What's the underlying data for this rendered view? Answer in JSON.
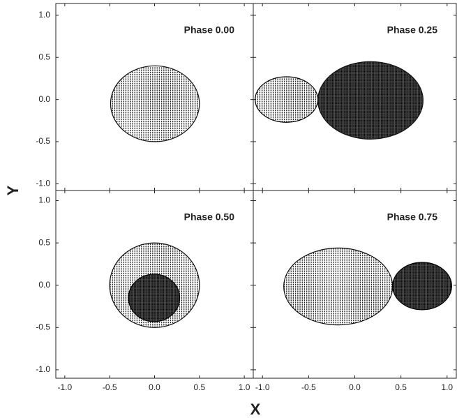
{
  "axes": {
    "x_label": "X",
    "y_label": "Y"
  },
  "chart_data": [
    {
      "type": "surface",
      "title": "Phase 0.00",
      "series": [
        {
          "color": "#111111",
          "x": [
            -0.49,
            0.5
          ],
          "values": [
            -0.5,
            0.4
          ]
        }
      ],
      "xlim": [
        -1.1,
        1.1
      ],
      "ylim": [
        -1.08,
        1.14
      ],
      "xticks": [
        {
          "value": -1,
          "label": "-1.0"
        },
        {
          "value": -0.5,
          "label": "-0.5"
        },
        {
          "value": 0,
          "label": "0.0"
        },
        {
          "value": 0.5,
          "label": "0.5"
        },
        {
          "value": 1,
          "label": "1.0"
        }
      ],
      "yticks": [
        {
          "value": -1,
          "label": "-1.0"
        },
        {
          "value": -0.5,
          "label": "-0.5"
        },
        {
          "value": 0,
          "label": "0.0"
        },
        {
          "value": 0.5,
          "label": "0.5"
        },
        {
          "value": 1,
          "label": "1.0"
        }
      ]
    },
    {
      "type": "surface",
      "title": "Phase 0.25",
      "series": [
        {
          "color": "#000000",
          "x": [
            -1.08,
            -0.4
          ],
          "values": [
            -0.27,
            0.27
          ]
        },
        {
          "color": "#111111",
          "x": [
            -0.4,
            0.74
          ],
          "values": [
            -0.47,
            0.45
          ]
        }
      ],
      "xlim": [
        -1.1,
        1.1
      ],
      "ylim": [
        -1.08,
        1.14
      ],
      "xticks": [
        {
          "value": -1,
          "label": "-1.0"
        },
        {
          "value": -0.5,
          "label": "-0.5"
        },
        {
          "value": 0,
          "label": "0.0"
        },
        {
          "value": 0.5,
          "label": "0.5"
        },
        {
          "value": 1,
          "label": "1.0"
        }
      ],
      "yticks": [
        {
          "value": -1,
          "label": "-1.0"
        },
        {
          "value": -0.5,
          "label": "-0.5"
        },
        {
          "value": 0,
          "label": "0.0"
        },
        {
          "value": 0.5,
          "label": "0.5"
        },
        {
          "value": 1,
          "label": "1.0"
        }
      ]
    },
    {
      "type": "surface",
      "title": "Phase 0.50",
      "series": [
        {
          "color": "#111111",
          "x": [
            -0.5,
            0.5
          ],
          "values": [
            -0.5,
            0.5
          ]
        },
        {
          "color": "#000000",
          "x": [
            -0.29,
            0.28
          ],
          "values": [
            -0.43,
            0.13
          ]
        }
      ],
      "xlim": [
        -1.1,
        1.1
      ],
      "ylim": [
        -1.1,
        1.12
      ],
      "xticks": [
        {
          "value": -1,
          "label": "-1.0"
        },
        {
          "value": -0.5,
          "label": "-0.5"
        },
        {
          "value": 0,
          "label": "0.0"
        },
        {
          "value": 0.5,
          "label": "0.5"
        },
        {
          "value": 1,
          "label": "1.0"
        }
      ],
      "yticks": [
        {
          "value": -1,
          "label": "-1.0"
        },
        {
          "value": -0.5,
          "label": "-0.5"
        },
        {
          "value": 0,
          "label": "0.0"
        },
        {
          "value": 0.5,
          "label": "0.5"
        },
        {
          "value": 1,
          "label": "1.0"
        }
      ]
    },
    {
      "type": "surface",
      "title": "Phase 0.75",
      "series": [
        {
          "color": "#111111",
          "x": [
            -0.77,
            0.41
          ],
          "values": [
            -0.47,
            0.44
          ]
        },
        {
          "color": "#000000",
          "x": [
            0.41,
            1.05
          ],
          "values": [
            -0.29,
            0.27
          ]
        }
      ],
      "xlim": [
        -1.1,
        1.1
      ],
      "ylim": [
        -1.1,
        1.12
      ],
      "xticks": [
        {
          "value": -1,
          "label": "-1.0"
        },
        {
          "value": -0.5,
          "label": "-0.5"
        },
        {
          "value": 0,
          "label": "0.0"
        },
        {
          "value": 0.5,
          "label": "0.5"
        },
        {
          "value": 1,
          "label": "1.0"
        }
      ],
      "yticks": [
        {
          "value": -1,
          "label": "-1.0"
        },
        {
          "value": -0.5,
          "label": "-0.5"
        },
        {
          "value": 0,
          "label": "0.0"
        },
        {
          "value": 0.5,
          "label": "0.5"
        },
        {
          "value": 1,
          "label": "1.0"
        }
      ]
    }
  ]
}
